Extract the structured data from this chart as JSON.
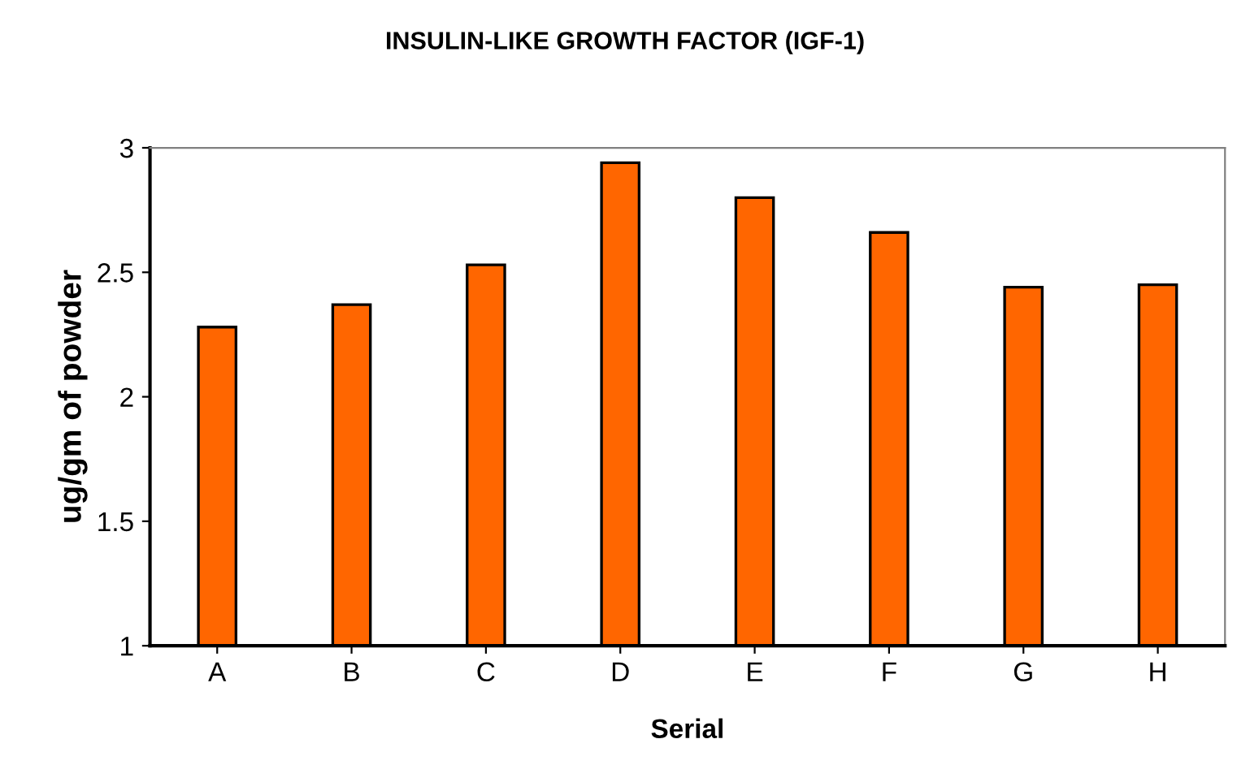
{
  "chart_data": {
    "type": "bar",
    "title": "INSULIN-LIKE GROWTH FACTOR (IGF-1)",
    "xlabel": "Serial",
    "ylabel": "ug/gm of powder",
    "categories": [
      "A",
      "B",
      "C",
      "D",
      "E",
      "F",
      "G",
      "H"
    ],
    "values": [
      2.28,
      2.37,
      2.53,
      2.94,
      2.8,
      2.66,
      2.44,
      2.45
    ],
    "color": "#ff6600",
    "ylim": [
      1,
      3
    ],
    "yticks": [
      1,
      1.5,
      2,
      2.5,
      3
    ],
    "grid": false,
    "legend": false
  }
}
